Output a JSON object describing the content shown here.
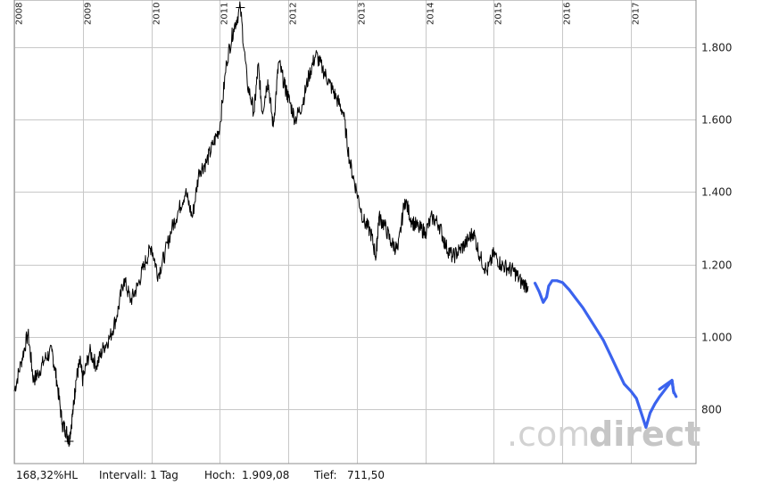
{
  "chart_data": {
    "type": "line",
    "x_tick_labels": [
      "2008",
      "2009",
      "2010",
      "2011",
      "2012",
      "2013",
      "2014",
      "2015",
      "2016",
      "2017"
    ],
    "y_ticks": [
      800,
      1000,
      1200,
      1400,
      1600,
      1800
    ],
    "y_tick_labels": [
      "800",
      "1.000",
      "1.200",
      "1.400",
      "1.600",
      "1.800"
    ],
    "ylim": [
      650,
      1930
    ],
    "xlim": [
      2008.0,
      2017.95
    ],
    "grid": true,
    "series": [
      {
        "kind": "price",
        "color": "#000000",
        "x": [
          2008.0,
          2008.1,
          2008.2,
          2008.28,
          2008.35,
          2008.45,
          2008.55,
          2008.62,
          2008.7,
          2008.76,
          2008.8,
          2008.86,
          2008.9,
          2008.96,
          2009.0,
          2009.1,
          2009.2,
          2009.3,
          2009.4,
          2009.5,
          2009.6,
          2009.7,
          2009.8,
          2009.9,
          2010.0,
          2010.1,
          2010.2,
          2010.3,
          2010.4,
          2010.5,
          2010.6,
          2010.7,
          2010.8,
          2010.9,
          2011.0,
          2011.1,
          2011.2,
          2011.3,
          2011.4,
          2011.5,
          2011.56,
          2011.62,
          2011.7,
          2011.78,
          2011.86,
          2011.95,
          2012.0,
          2012.1,
          2012.2,
          2012.3,
          2012.4,
          2012.5,
          2012.6,
          2012.7,
          2012.8,
          2012.9,
          2013.0,
          2013.1,
          2013.2,
          2013.28,
          2013.32,
          2013.4,
          2013.5,
          2013.6,
          2013.7,
          2013.8,
          2013.9,
          2014.0,
          2014.1,
          2014.2,
          2014.3,
          2014.4,
          2014.5,
          2014.6,
          2014.7,
          2014.8,
          2014.9,
          2015.0,
          2015.1,
          2015.2,
          2015.3,
          2015.4,
          2015.5
        ],
        "y": [
          850,
          930,
          1010,
          880,
          900,
          940,
          960,
          880,
          760,
          740,
          711.5,
          800,
          880,
          930,
          880,
          960,
          920,
          970,
          1000,
          1060,
          1160,
          1100,
          1140,
          1200,
          1250,
          1170,
          1230,
          1300,
          1350,
          1400,
          1330,
          1460,
          1480,
          1530,
          1580,
          1760,
          1850,
          1909.08,
          1700,
          1620,
          1750,
          1620,
          1710,
          1580,
          1760,
          1690,
          1660,
          1600,
          1640,
          1720,
          1780,
          1740,
          1700,
          1660,
          1620,
          1480,
          1400,
          1320,
          1290,
          1220,
          1330,
          1310,
          1260,
          1240,
          1380,
          1320,
          1300,
          1290,
          1330,
          1310,
          1250,
          1220,
          1240,
          1260,
          1290,
          1220,
          1180,
          1230,
          1200,
          1190,
          1180,
          1150,
          1140
        ]
      },
      {
        "kind": "drawn",
        "color": "#3b63ee",
        "x": [
          2015.6,
          2015.66,
          2015.72,
          2015.77,
          2015.8,
          2015.85,
          2015.92,
          2016.0,
          2016.1,
          2016.2,
          2016.3,
          2016.4,
          2016.5,
          2016.6,
          2016.7,
          2016.8,
          2016.9,
          2017.0,
          2017.08,
          2017.15,
          2017.22,
          2017.28,
          2017.35,
          2017.42,
          2017.48,
          2017.52,
          2017.56,
          2017.6,
          2017.62,
          2017.66
        ],
        "y": [
          1148,
          1125,
          1095,
          1110,
          1140,
          1155,
          1155,
          1150,
          1130,
          1105,
          1080,
          1050,
          1020,
          990,
          950,
          910,
          870,
          850,
          830,
          790,
          750,
          790,
          815,
          835,
          850,
          860,
          870,
          880,
          850,
          835
        ]
      }
    ],
    "footer": {
      "change": "168,32%HL",
      "interval": "Intervall: 1 Tag",
      "high_label": "Hoch:",
      "high_value": "1.909,08",
      "low_label": "Tief:",
      "low_value": "711,50"
    },
    "watermark": {
      "light": ".com",
      "bold": "direct"
    }
  }
}
